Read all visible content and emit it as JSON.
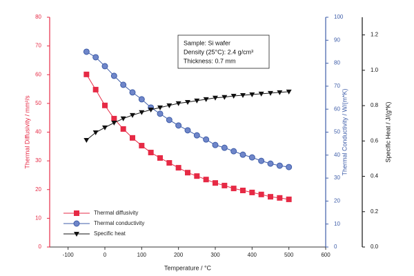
{
  "chart_data": {
    "type": "line",
    "x_label": "Temperature / °C",
    "y_label": "Thermal Diffusivity / mm²/s",
    "y2_label": "Thermal Conductivity / W/(m*K)",
    "y3_label": "Specific Heat / J/(g*K)",
    "annotation": [
      "Sample: Si wafer",
      "Density (25°C): 2.4 g/cm³",
      "Thickness: 0.7 mm"
    ],
    "x": [
      -50,
      -25,
      0,
      25,
      50,
      75,
      100,
      125,
      150,
      175,
      200,
      225,
      250,
      275,
      300,
      325,
      350,
      375,
      400,
      425,
      450,
      475,
      500
    ],
    "xlim": [
      -150,
      600
    ],
    "xticks": [
      -100,
      0,
      100,
      200,
      300,
      400,
      500,
      600
    ],
    "ylim": [
      0,
      80
    ],
    "yticks": [
      0,
      10,
      20,
      30,
      40,
      50,
      60,
      70,
      80
    ],
    "y2lim": [
      0,
      100
    ],
    "y2ticks": [
      0,
      10,
      20,
      30,
      40,
      50,
      60,
      70,
      80,
      90,
      100
    ],
    "y3lim": [
      0,
      1.3
    ],
    "y3ticks": [
      {
        "value": 0,
        "label": "0.0"
      },
      0.2,
      0.4,
      0.6,
      0.8,
      {
        "value": 1,
        "label": "1.0"
      },
      1.2
    ],
    "series": [
      {
        "name": "Thermal diffusivity",
        "color": "#e62a45",
        "marker": "square",
        "axis": "y",
        "values": [
          60.1,
          54.8,
          49.3,
          44.7,
          41.1,
          38.0,
          35.3,
          32.9,
          31.0,
          29.3,
          27.6,
          25.9,
          24.7,
          23.5,
          22.3,
          21.4,
          20.4,
          19.7,
          19.0,
          18.3,
          17.5,
          17.1,
          16.6
        ]
      },
      {
        "name": "Thermal conductivity",
        "color": "#3d5ca8",
        "marker": "circle",
        "axis": "y2",
        "values": [
          85.0,
          82.6,
          78.7,
          74.5,
          70.6,
          67.3,
          64.3,
          60.7,
          58.0,
          55.3,
          52.9,
          50.8,
          48.6,
          46.8,
          44.4,
          43.2,
          41.7,
          40.2,
          39.0,
          37.5,
          36.3,
          35.4,
          34.8
        ]
      },
      {
        "name": "Specific heat",
        "color": "#111111",
        "marker": "triangle-down",
        "axis": "y3",
        "values": [
          0.605,
          0.648,
          0.676,
          0.703,
          0.727,
          0.746,
          0.762,
          0.777,
          0.789,
          0.801,
          0.813,
          0.82,
          0.828,
          0.836,
          0.844,
          0.848,
          0.855,
          0.859,
          0.863,
          0.867,
          0.871,
          0.875,
          0.879
        ]
      }
    ]
  }
}
